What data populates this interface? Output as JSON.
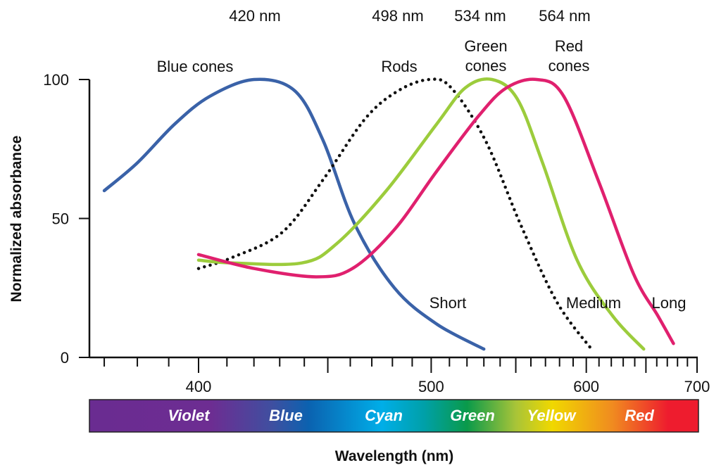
{
  "chart_data": {
    "type": "line",
    "title": "",
    "xlabel": "Wavelength (nm)",
    "ylabel": "Normalized absorbance",
    "x_scale": "reciprocal",
    "xlim": [
      365,
      700
    ],
    "ylim": [
      0,
      100
    ],
    "x_ticks": [
      400,
      500,
      600,
      700
    ],
    "x_minor_step": 10,
    "y_ticks": [
      0,
      50,
      100
    ],
    "grid": false,
    "peak_labels": [
      "420 nm",
      "498 nm",
      "534 nm",
      "564 nm"
    ],
    "series": [
      {
        "name": "Blue cones",
        "end_label": "Short",
        "color": "#3a62a8",
        "style": "solid",
        "x": [
          370,
          380,
          392,
          404,
          420,
          436,
          448,
          462,
          481,
          503,
          530
        ],
        "y": [
          60,
          70,
          84,
          94,
          100,
          96,
          78,
          48,
          25,
          12,
          3
        ]
      },
      {
        "name": "Rods",
        "color": "#111111",
        "style": "dotted",
        "x": [
          400,
          412,
          431,
          448,
          467,
          483,
          499,
          511,
          531,
          553,
          578,
          604
        ],
        "y": [
          32,
          36,
          45,
          64,
          86,
          96,
          100,
          97,
          78,
          48,
          20,
          3
        ]
      },
      {
        "name": "Green cones",
        "end_label": "Medium",
        "color": "#9ccc3c",
        "style": "solid",
        "x": [
          400,
          412,
          439,
          454,
          477,
          503,
          519,
          535,
          551,
          568,
          593,
          621,
          648
        ],
        "y": [
          35,
          34,
          34,
          41,
          60,
          84,
          97,
          100,
          93,
          70,
          35,
          15,
          3
        ]
      },
      {
        "name": "Red cones",
        "end_label": "Long",
        "color": "#e0206e",
        "style": "solid",
        "x": [
          400,
          420,
          445,
          461,
          481,
          503,
          527,
          544,
          564,
          583,
          610,
          639,
          661,
          676
        ],
        "y": [
          37,
          32,
          29,
          32,
          46,
          67,
          87,
          97,
          100,
          94,
          63,
          30,
          15,
          5
        ]
      }
    ],
    "spectrum_bands": [
      "Violet",
      "Blue",
      "Cyan",
      "Green",
      "Yellow",
      "Red"
    ]
  },
  "labels": {
    "peak_420": "420 nm",
    "peak_498": "498 nm",
    "peak_534": "534 nm",
    "peak_564": "564 nm",
    "blue_cones": "Blue cones",
    "rods": "Rods",
    "green_1": "Green",
    "green_2": "cones",
    "red_1": "Red",
    "red_2": "cones",
    "short": "Short",
    "medium": "Medium",
    "long": "Long"
  }
}
